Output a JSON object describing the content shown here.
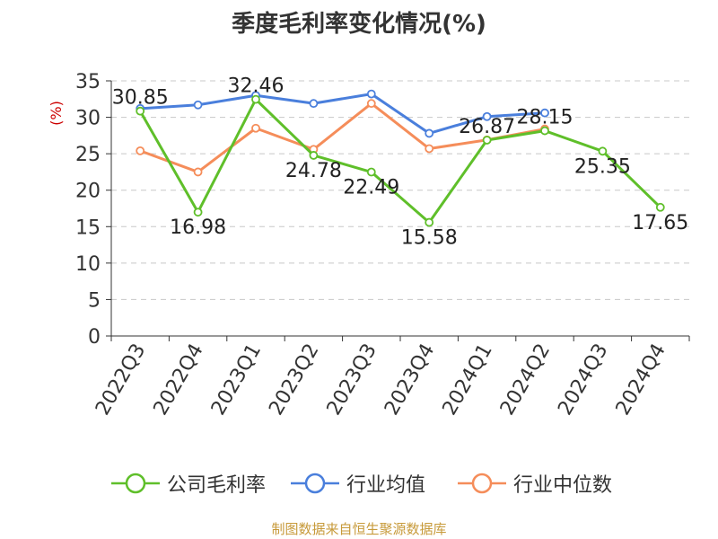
{
  "chart_data": {
    "type": "line",
    "title": "季度毛利率变化情况(%)",
    "ylabel": "(%)",
    "xlabel": "",
    "categories": [
      "2022Q3",
      "2022Q4",
      "2023Q1",
      "2023Q2",
      "2023Q3",
      "2023Q4",
      "2024Q1",
      "2024Q2",
      "2024Q3",
      "2024Q4"
    ],
    "ylim": [
      0,
      35
    ],
    "yticks": [
      0,
      5,
      10,
      15,
      20,
      25,
      30,
      35
    ],
    "grid": true,
    "legend_position": "bottom",
    "series": [
      {
        "name": "公司毛利率",
        "color": "#5fbf2a",
        "values": [
          30.85,
          16.98,
          32.46,
          24.78,
          22.49,
          15.58,
          26.87,
          28.15,
          25.35,
          17.65
        ],
        "labels": [
          "30.85",
          "16.98",
          "32.46",
          "24.78",
          "22.49",
          "15.58",
          "26.87",
          "28.15",
          "25.35",
          "17.65"
        ]
      },
      {
        "name": "行业均值",
        "color": "#4a7fdc",
        "values": [
          31.2,
          31.7,
          33.0,
          31.9,
          33.2,
          27.8,
          30.1,
          30.6,
          null,
          null
        ]
      },
      {
        "name": "行业中位数",
        "color": "#f58d5a",
        "values": [
          25.4,
          22.5,
          28.5,
          25.6,
          31.9,
          25.7,
          26.9,
          28.4,
          null,
          null
        ]
      }
    ]
  },
  "footer": {
    "source": "制图数据来自恒生聚源数据库"
  }
}
